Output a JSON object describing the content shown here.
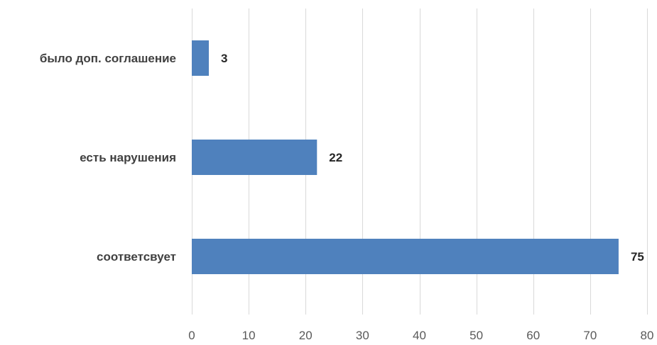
{
  "chart_data": {
    "type": "bar",
    "orientation": "horizontal",
    "categories": [
      "было доп. соглашение",
      "есть нарушения",
      "соответсвует"
    ],
    "values": [
      3,
      22,
      75
    ],
    "data_labels": [
      "3",
      "22",
      "75"
    ],
    "xlim": [
      0,
      80
    ],
    "x_ticks": [
      0,
      10,
      20,
      30,
      40,
      50,
      60,
      70,
      80
    ],
    "x_tick_labels": [
      "0",
      "10",
      "20",
      "30",
      "40",
      "50",
      "60",
      "70",
      "80"
    ],
    "title": "",
    "xlabel": "",
    "ylabel": "",
    "grid": "vertical",
    "legend": "none",
    "colors": {
      "bar": "#4f81bd",
      "grid": "#d9d9d9"
    }
  }
}
